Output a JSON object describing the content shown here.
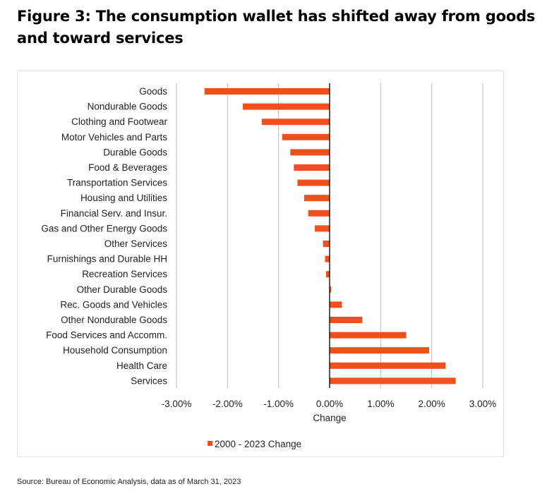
{
  "title": "Figure 3: The consumption wallet has shifted away from goods and toward services",
  "source": "Source: Bureau of Economic Analysis, data as of March 31, 2023",
  "colors": {
    "bar": "#f0511c",
    "grid": "#bdbdbd",
    "axis": "#000000"
  },
  "chart_data": {
    "type": "bar",
    "orientation": "horizontal",
    "categories": [
      "Goods",
      "Nondurable Goods",
      "Clothing and Footwear",
      "Motor Vehicles and Parts",
      "Durable Goods",
      "Food & Beverages",
      "Transportation Services",
      "Housing and Utilities",
      "Financial Serv. and Insur.",
      "Gas and Other Energy Goods",
      "Other Services",
      "Furnishings and Durable HH",
      "Recreation Services",
      "Other Durable Goods",
      "Rec. Goods and Vehicles",
      "Other Nondurable Goods",
      "Food Services and Accomm.",
      "Household Consumption",
      "Health Care",
      "Services"
    ],
    "series": [
      {
        "name": "2000 - 2023 Change",
        "values": [
          -2.45,
          -1.7,
          -1.33,
          -0.93,
          -0.77,
          -0.7,
          -0.63,
          -0.5,
          -0.42,
          -0.29,
          -0.13,
          -0.09,
          -0.07,
          0.03,
          0.24,
          0.64,
          1.5,
          1.95,
          2.27,
          2.47
        ]
      }
    ],
    "xlabel": "Change",
    "ylabel": "",
    "xlim": [
      -3,
      3
    ],
    "ticks": [
      "-3.00%",
      "-2.00%",
      "-1.00%",
      "0.00%",
      "1.00%",
      "2.00%",
      "3.00%"
    ],
    "tick_values": [
      -3,
      -2,
      -1,
      0,
      1,
      2,
      3
    ],
    "grid": true,
    "legend_position": "bottom"
  }
}
